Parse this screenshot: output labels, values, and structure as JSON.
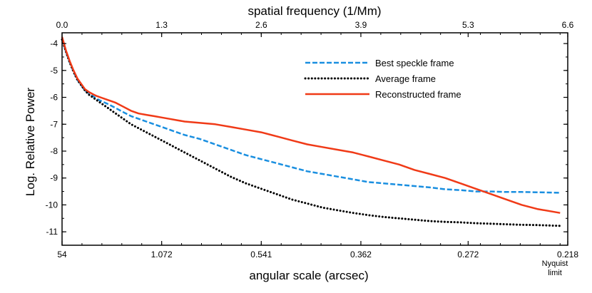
{
  "chart_data": {
    "type": "line",
    "title": "",
    "xlabel": "angular scale (arcsec)",
    "x2label": "spatial frequency (1/Mm)",
    "ylabel": "Log. Relative Power",
    "xlim": [
      0,
      6.6
    ],
    "ylim": [
      -11.5,
      -3.6
    ],
    "grid": false,
    "legend_position": "top-right",
    "xticks_bottom": [
      {
        "x": 0.0,
        "label": "54"
      },
      {
        "x": 1.3,
        "label": "1.072"
      },
      {
        "x": 2.6,
        "label": "0.541"
      },
      {
        "x": 3.9,
        "label": "0.362"
      },
      {
        "x": 5.3,
        "label": "0.272"
      },
      {
        "x": 6.6,
        "label": "0.218"
      }
    ],
    "xticks_top": [
      {
        "x": 0.0,
        "label": "0.0"
      },
      {
        "x": 1.3,
        "label": "1.3"
      },
      {
        "x": 2.6,
        "label": "2.6"
      },
      {
        "x": 3.9,
        "label": "3.9"
      },
      {
        "x": 5.3,
        "label": "5.3"
      },
      {
        "x": 6.6,
        "label": "6.6"
      }
    ],
    "yticks": [
      {
        "y": -4,
        "label": "-4"
      },
      {
        "y": -5,
        "label": "-5"
      },
      {
        "y": -6,
        "label": "-6"
      },
      {
        "y": -7,
        "label": "-7"
      },
      {
        "y": -8,
        "label": "-8"
      },
      {
        "y": -9,
        "label": "-9"
      },
      {
        "y": -10,
        "label": "-10"
      },
      {
        "y": -11,
        "label": "-11"
      }
    ],
    "annotation": [
      "Nyquist",
      "limit"
    ],
    "series": [
      {
        "name": "Best speckle frame",
        "color": "#1a8fe0",
        "style": "dashed",
        "x": [
          0.0,
          0.05,
          0.1,
          0.15,
          0.2,
          0.25,
          0.3,
          0.35,
          0.4,
          0.45,
          0.5,
          0.6,
          0.7,
          0.8,
          0.9,
          1.0,
          1.1,
          1.2,
          1.3,
          1.4,
          1.5,
          1.6,
          1.8,
          2.0,
          2.2,
          2.4,
          2.6,
          2.8,
          3.0,
          3.2,
          3.4,
          3.6,
          3.8,
          4.0,
          4.2,
          4.4,
          4.6,
          4.8,
          5.0,
          5.2,
          5.4,
          5.6,
          5.8,
          6.0,
          6.2,
          6.5
        ],
        "y": [
          -3.85,
          -4.3,
          -4.7,
          -5.05,
          -5.35,
          -5.55,
          -5.75,
          -5.85,
          -5.95,
          -6.05,
          -6.12,
          -6.25,
          -6.4,
          -6.55,
          -6.7,
          -6.8,
          -6.9,
          -7.0,
          -7.1,
          -7.2,
          -7.3,
          -7.4,
          -7.55,
          -7.75,
          -7.95,
          -8.15,
          -8.3,
          -8.45,
          -8.6,
          -8.75,
          -8.85,
          -8.95,
          -9.05,
          -9.15,
          -9.2,
          -9.25,
          -9.3,
          -9.35,
          -9.42,
          -9.45,
          -9.5,
          -9.5,
          -9.52,
          -9.52,
          -9.53,
          -9.55
        ]
      },
      {
        "name": "Average frame",
        "color": "#000000",
        "style": "dotted",
        "x": [
          0.0,
          0.05,
          0.1,
          0.15,
          0.2,
          0.25,
          0.3,
          0.35,
          0.4,
          0.45,
          0.5,
          0.6,
          0.7,
          0.8,
          0.9,
          1.0,
          1.1,
          1.2,
          1.3,
          1.4,
          1.5,
          1.6,
          1.8,
          2.0,
          2.2,
          2.4,
          2.6,
          2.8,
          3.0,
          3.2,
          3.4,
          3.6,
          3.8,
          4.0,
          4.2,
          4.4,
          4.6,
          4.8,
          5.0,
          5.2,
          5.4,
          5.6,
          5.8,
          6.0,
          6.2,
          6.5
        ],
        "y": [
          -3.85,
          -4.3,
          -4.7,
          -5.05,
          -5.35,
          -5.55,
          -5.75,
          -5.9,
          -6.0,
          -6.1,
          -6.2,
          -6.4,
          -6.6,
          -6.8,
          -7.0,
          -7.15,
          -7.3,
          -7.45,
          -7.6,
          -7.75,
          -7.9,
          -8.05,
          -8.35,
          -8.65,
          -8.95,
          -9.2,
          -9.4,
          -9.6,
          -9.8,
          -9.95,
          -10.1,
          -10.2,
          -10.3,
          -10.38,
          -10.45,
          -10.5,
          -10.55,
          -10.6,
          -10.63,
          -10.65,
          -10.68,
          -10.7,
          -10.72,
          -10.74,
          -10.75,
          -10.78
        ]
      },
      {
        "name": "Reconstructed frame",
        "color": "#f03a17",
        "style": "solid",
        "x": [
          0.0,
          0.05,
          0.1,
          0.15,
          0.2,
          0.25,
          0.3,
          0.35,
          0.4,
          0.45,
          0.5,
          0.6,
          0.7,
          0.8,
          0.9,
          1.0,
          1.1,
          1.2,
          1.3,
          1.4,
          1.5,
          1.6,
          1.8,
          2.0,
          2.2,
          2.4,
          2.6,
          2.8,
          3.0,
          3.2,
          3.4,
          3.6,
          3.8,
          4.0,
          4.2,
          4.4,
          4.6,
          4.8,
          5.0,
          5.2,
          5.4,
          5.6,
          5.8,
          6.0,
          6.2,
          6.5
        ],
        "y": [
          -3.75,
          -4.25,
          -4.65,
          -5.0,
          -5.3,
          -5.5,
          -5.7,
          -5.8,
          -5.88,
          -5.95,
          -6.0,
          -6.1,
          -6.2,
          -6.35,
          -6.5,
          -6.6,
          -6.65,
          -6.7,
          -6.75,
          -6.8,
          -6.85,
          -6.9,
          -6.95,
          -7.0,
          -7.1,
          -7.2,
          -7.3,
          -7.45,
          -7.6,
          -7.75,
          -7.85,
          -7.95,
          -8.05,
          -8.2,
          -8.35,
          -8.5,
          -8.7,
          -8.85,
          -9.0,
          -9.2,
          -9.4,
          -9.6,
          -9.8,
          -10.0,
          -10.15,
          -10.3
        ]
      }
    ]
  }
}
